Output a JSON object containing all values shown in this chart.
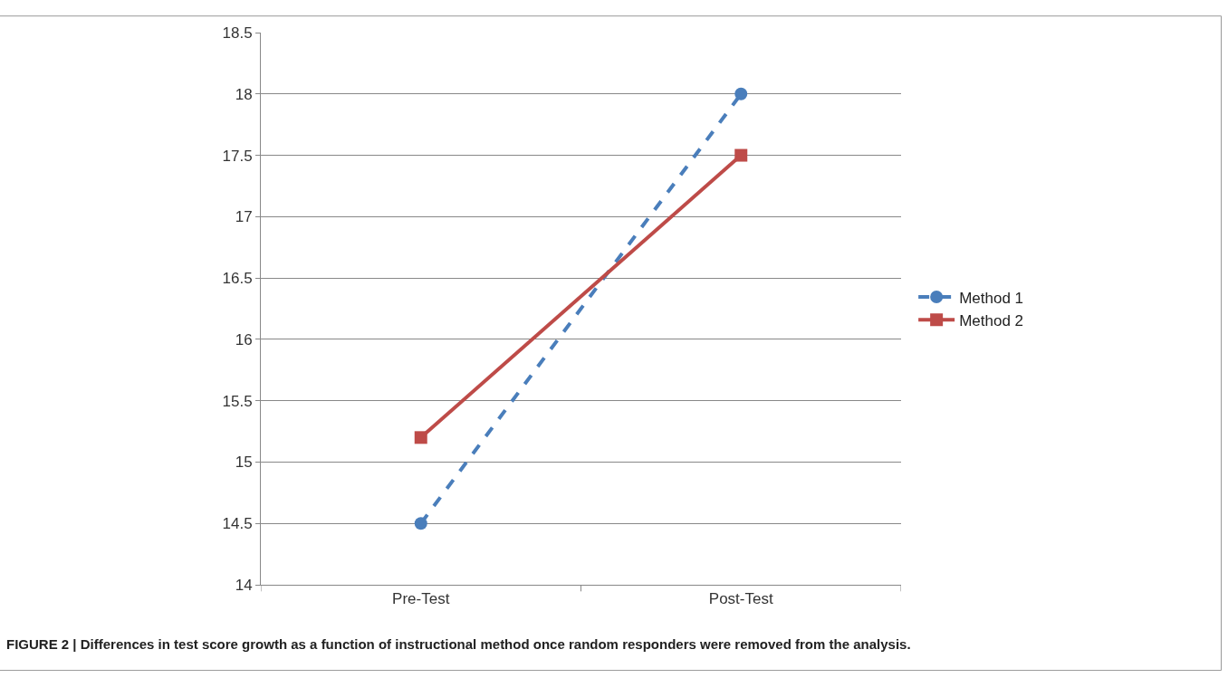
{
  "chart_data": {
    "type": "line",
    "categories": [
      "Pre-Test",
      "Post-Test"
    ],
    "series": [
      {
        "name": "Method 1",
        "color": "#4a7ebb",
        "values": [
          14.5,
          18
        ],
        "marker": "circle",
        "line_style": "dashed"
      },
      {
        "name": "Method 2",
        "color": "#be4b48",
        "values": [
          15.2,
          17.5
        ],
        "marker": "square",
        "line_style": "solid"
      }
    ],
    "ylim": [
      14,
      18.5
    ],
    "yticks": [
      14,
      14.5,
      15,
      15.5,
      16,
      16.5,
      17,
      17.5,
      18,
      18.5
    ],
    "grid": "y",
    "legend": "right",
    "annotations": [
      "FIGURE 2 | Differences in test score growth as a function of instructional method once random responders were removed from the analysis."
    ]
  }
}
